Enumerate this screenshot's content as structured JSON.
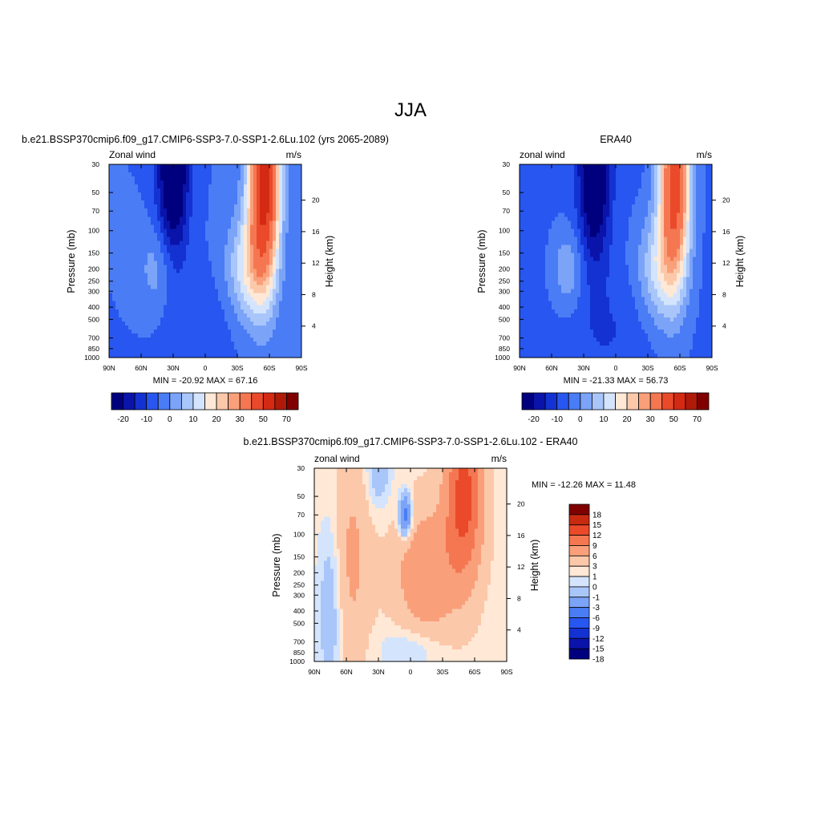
{
  "figure": {
    "title": "JJA"
  },
  "palettes": {
    "abs": [
      "#00007f",
      "#0a14aa",
      "#1432d2",
      "#2856f0",
      "#4a7cf5",
      "#7ba4f8",
      "#a9c6fa",
      "#d4e4fc",
      "#ffe8d6",
      "#fcc8aa",
      "#f9a07a",
      "#f47752",
      "#ea4a2a",
      "#d42a14",
      "#b01a08",
      "#800000"
    ],
    "diff": [
      "#00007f",
      "#0a14aa",
      "#1432d2",
      "#2856f0",
      "#4a7cf5",
      "#7ba4f8",
      "#a9c6fa",
      "#d4e4fc",
      "#ffe8d6",
      "#fcc8aa",
      "#f9a07a",
      "#f47752",
      "#ea4a2a",
      "#c82a10",
      "#800000"
    ]
  },
  "chart_data": [
    {
      "type": "heatmap",
      "title": "b.e21.BSSP370cmip6.f09_g17.CMIP6-SSP3-7.0-SSP1-2.6Lu.102 (yrs 2065-2089)",
      "left_string": "Zonal wind",
      "right_string": "m/s",
      "ylabel": "Pressure (mb)",
      "ylabel_right": "Height (km)",
      "x_ticks": [
        "90N",
        "60N",
        "30N",
        "0",
        "30S",
        "60S",
        "90S"
      ],
      "y_ticks": [
        "30",
        "50",
        "70",
        "100",
        "150",
        "200",
        "250",
        "300",
        "400",
        "500",
        "700",
        "850",
        "1000"
      ],
      "y_right_ticks": [
        "20",
        "16",
        "12",
        "8",
        "4"
      ],
      "min_max": "MIN = -20.92  MAX =  67.16",
      "colorbar_labels": [
        "-20",
        "-10",
        "0",
        "10",
        "20",
        "30",
        "50",
        "70"
      ],
      "field": {
        "features": [
          {
            "lat": 30,
            "logp": 1.5,
            "slat": 10,
            "slogp": 0.5,
            "amp": -27
          },
          {
            "lat": -55,
            "logp": 1.6,
            "slat": 10,
            "slogp": 0.55,
            "amp": 62
          },
          {
            "lat": -40,
            "logp": 2.3,
            "slat": 14,
            "slogp": 0.3,
            "amp": 18
          },
          {
            "lat": 45,
            "logp": 2.3,
            "slat": 12,
            "slogp": 0.25,
            "amp": 8
          },
          {
            "lat": 5,
            "logp": 2.8,
            "slat": 25,
            "slogp": 0.3,
            "amp": -4
          }
        ],
        "base": -5
      }
    },
    {
      "type": "heatmap",
      "title": "ERA40",
      "left_string": "zonal wind",
      "right_string": "m/s",
      "ylabel": "Pressure (mb)",
      "ylabel_right": "Height (km)",
      "x_ticks": [
        "90N",
        "60N",
        "30N",
        "0",
        "30S",
        "60S",
        "90S"
      ],
      "y_ticks": [
        "30",
        "50",
        "70",
        "100",
        "150",
        "200",
        "250",
        "300",
        "400",
        "500",
        "700",
        "850",
        "1000"
      ],
      "y_right_ticks": [
        "20",
        "16",
        "12",
        "8",
        "4"
      ],
      "min_max": "MIN = -21.33  MAX =  56.73",
      "colorbar_labels": [
        "-20",
        "-10",
        "0",
        "10",
        "20",
        "30",
        "50",
        "70"
      ],
      "field": {
        "features": [
          {
            "lat": 20,
            "logp": 1.5,
            "slat": 10,
            "slogp": 0.5,
            "amp": -26
          },
          {
            "lat": -55,
            "logp": 1.6,
            "slat": 10,
            "slogp": 0.55,
            "amp": 52
          },
          {
            "lat": -40,
            "logp": 2.3,
            "slat": 14,
            "slogp": 0.3,
            "amp": 16
          },
          {
            "lat": 45,
            "logp": 2.3,
            "slat": 10,
            "slogp": 0.22,
            "amp": 10
          },
          {
            "lat": 5,
            "logp": 2.8,
            "slat": 25,
            "slogp": 0.3,
            "amp": -4
          }
        ],
        "base": -6
      }
    },
    {
      "type": "heatmap",
      "title": "b.e21.BSSP370cmip6.f09_g17.CMIP6-SSP3-7.0-SSP1-2.6Lu.102 - ERA40",
      "left_string": "zonal wind",
      "right_string": "m/s",
      "ylabel": "Pressure (mb)",
      "ylabel_right": "Height (km)",
      "x_ticks": [
        "90N",
        "60N",
        "30N",
        "0",
        "30S",
        "60S",
        "90S"
      ],
      "y_ticks": [
        "30",
        "50",
        "70",
        "100",
        "150",
        "200",
        "250",
        "300",
        "400",
        "500",
        "700",
        "850",
        "1000"
      ],
      "y_right_ticks": [
        "20",
        "16",
        "12",
        "8",
        "4"
      ],
      "min_max": "MIN = -12.26  MAX =  11.48",
      "colorbar_labels": [
        "18",
        "15",
        "12",
        "9",
        "6",
        "3",
        "1",
        "0",
        "-1",
        "-3",
        "-6",
        "-9",
        "-12",
        "-15",
        "-18"
      ],
      "field": {
        "features": [
          {
            "lat": -50,
            "logp": 1.7,
            "slat": 12,
            "slogp": 0.45,
            "amp": 10
          },
          {
            "lat": 5,
            "logp": 1.85,
            "slat": 4,
            "slogp": 0.12,
            "amp": -9
          },
          {
            "lat": -15,
            "logp": 2.3,
            "slat": 20,
            "slogp": 0.35,
            "amp": 5
          },
          {
            "lat": 55,
            "logp": 2.2,
            "slat": 12,
            "slogp": 0.6,
            "amp": 3
          },
          {
            "lat": 75,
            "logp": 2.6,
            "slat": 8,
            "slogp": 0.5,
            "amp": -3
          },
          {
            "lat": 30,
            "logp": 1.5,
            "slat": 8,
            "slogp": 0.2,
            "amp": -3
          },
          {
            "lat": 0,
            "logp": 2.9,
            "slat": 20,
            "slogp": 0.12,
            "amp": -2
          }
        ],
        "base": 0.5
      }
    }
  ]
}
